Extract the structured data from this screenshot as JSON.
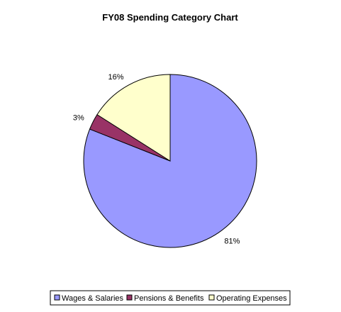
{
  "chart_data": {
    "type": "pie",
    "title": "FY08 Spending Category Chart",
    "start_angle_deg": 0,
    "direction": "clockwise",
    "slices": [
      {
        "label": "Wages & Salaries",
        "value": 81,
        "display": "81%",
        "color": "#9999FF"
      },
      {
        "label": "Pensions & Benefits",
        "value": 3,
        "display": "3%",
        "color": "#993366"
      },
      {
        "label": "Operating Expenses",
        "value": 16,
        "display": "16%",
        "color": "#FFFFCC"
      }
    ],
    "legend": {
      "position": "bottom",
      "items": [
        "Wages & Salaries",
        "Pensions & Benefits",
        "Operating Expenses"
      ]
    }
  }
}
